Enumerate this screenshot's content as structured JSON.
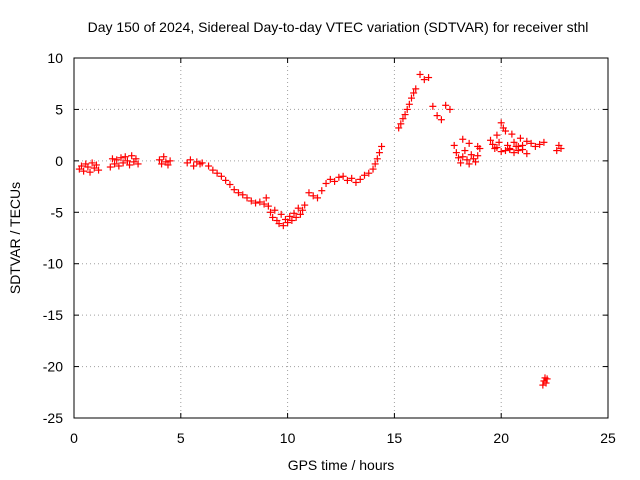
{
  "chart_data": {
    "type": "scatter",
    "title": "Day 150 of 2024, Sidereal Day-to-day VTEC variation (SDTVAR) for receiver sthl",
    "xlabel": "GPS time / hours",
    "ylabel": "SDTVAR / TECUs",
    "xlim": [
      0,
      25
    ],
    "ylim": [
      -25,
      10
    ],
    "xticks": [
      0,
      5,
      10,
      15,
      20,
      25
    ],
    "yticks": [
      10,
      5,
      0,
      -5,
      -10,
      -15,
      -20,
      -25
    ],
    "grid": true,
    "marker": "+",
    "marker_color": "#ff0000",
    "series": [
      {
        "name": "SDTVAR",
        "x": [
          0.25,
          0.35,
          0.45,
          0.55,
          0.65,
          0.75,
          0.85,
          0.95,
          1.05,
          1.15,
          1.7,
          1.8,
          1.9,
          2.0,
          2.1,
          2.2,
          2.3,
          2.4,
          2.5,
          2.6,
          2.7,
          2.8,
          2.9,
          3.0,
          4.0,
          4.1,
          4.2,
          4.3,
          4.4,
          4.5,
          5.3,
          5.45,
          5.6,
          5.75,
          5.9,
          6.0,
          6.3,
          6.5,
          6.7,
          6.9,
          7.1,
          7.3,
          7.5,
          7.7,
          7.9,
          8.1,
          8.3,
          8.5,
          8.7,
          8.9,
          9.0,
          9.1,
          9.2,
          9.3,
          9.4,
          9.5,
          9.6,
          9.7,
          9.8,
          9.9,
          10.0,
          10.1,
          10.2,
          10.3,
          10.4,
          10.5,
          10.6,
          10.7,
          10.8,
          11.0,
          11.2,
          11.4,
          11.6,
          11.8,
          12.0,
          12.2,
          12.4,
          12.6,
          12.8,
          13.0,
          13.2,
          13.4,
          13.6,
          13.8,
          14.0,
          14.1,
          14.2,
          14.3,
          14.4,
          15.2,
          15.3,
          15.4,
          15.5,
          15.6,
          15.7,
          15.8,
          15.9,
          16.0,
          16.2,
          16.4,
          16.6,
          16.8,
          17.0,
          17.2,
          17.4,
          17.6,
          17.8,
          17.9,
          18.0,
          18.1,
          18.2,
          18.3,
          18.4,
          18.5,
          18.6,
          18.7,
          18.8,
          18.9,
          19.0,
          18.2,
          18.5,
          18.9,
          19.5,
          19.6,
          19.7,
          19.8,
          19.9,
          20.0,
          20.1,
          20.2,
          20.3,
          20.4,
          20.5,
          20.6,
          20.7,
          20.8,
          20.9,
          21.0,
          21.2,
          21.4,
          21.6,
          21.8,
          22.0,
          19.8,
          20.0,
          20.2,
          20.4,
          20.6,
          20.8,
          21.0,
          21.2,
          22.6,
          22.7,
          22.8,
          21.95,
          22.0,
          22.05,
          22.1,
          22.15
        ],
        "y": [
          -0.8,
          -0.5,
          -1.0,
          -0.3,
          -0.6,
          -1.1,
          -0.2,
          -0.7,
          -0.4,
          -0.9,
          -0.6,
          0.2,
          -0.3,
          0.1,
          -0.5,
          0.3,
          -0.2,
          0.4,
          0.0,
          -0.4,
          0.5,
          -0.1,
          0.2,
          -0.3,
          0.1,
          -0.3,
          0.4,
          -0.1,
          -0.4,
          0.0,
          -0.2,
          0.1,
          -0.5,
          -0.1,
          -0.3,
          -0.2,
          -0.5,
          -0.9,
          -1.2,
          -1.5,
          -1.9,
          -2.3,
          -2.8,
          -3.1,
          -3.3,
          -3.6,
          -3.9,
          -4.1,
          -4.0,
          -4.2,
          -3.6,
          -4.4,
          -5.0,
          -5.5,
          -4.8,
          -5.8,
          -6.1,
          -5.2,
          -6.3,
          -5.7,
          -6.0,
          -5.4,
          -5.8,
          -5.1,
          -5.5,
          -4.6,
          -5.2,
          -4.8,
          -4.3,
          -3.1,
          -3.4,
          -3.6,
          -2.9,
          -2.2,
          -1.8,
          -2.0,
          -1.6,
          -1.5,
          -1.9,
          -1.7,
          -2.1,
          -1.8,
          -1.4,
          -1.2,
          -0.8,
          -0.3,
          0.2,
          0.8,
          1.4,
          3.2,
          3.6,
          4.1,
          4.5,
          5.0,
          5.5,
          6.1,
          6.6,
          7.0,
          8.4,
          7.9,
          8.1,
          5.3,
          4.4,
          4.0,
          5.4,
          5.0,
          1.5,
          0.8,
          0.3,
          -0.2,
          0.4,
          1.0,
          0.1,
          -0.3,
          0.6,
          0.2,
          -0.1,
          0.5,
          1.2,
          2.1,
          1.7,
          1.4,
          2.0,
          1.6,
          1.2,
          2.5,
          1.8,
          3.7,
          3.2,
          2.9,
          1.5,
          1.1,
          2.6,
          1.8,
          1.4,
          1.0,
          2.2,
          1.5,
          1.9,
          1.7,
          1.4,
          1.6,
          1.8,
          1.3,
          0.9,
          1.0,
          1.2,
          0.8,
          1.4,
          1.1,
          0.7,
          1.0,
          1.5,
          1.2,
          -21.8,
          -21.4,
          -21.1,
          -21.6,
          -21.2
        ]
      }
    ]
  }
}
